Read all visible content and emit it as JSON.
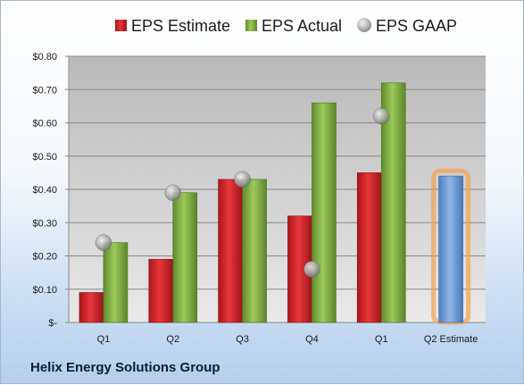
{
  "company_name": "Helix Energy Solutions Group",
  "colors": {
    "estimate": "#e0262b",
    "actual": "#8cb84c",
    "gaap": "#9c9c9c",
    "q2_estimate": "#7aa7dc",
    "highlight": "#f4a24a"
  },
  "chart_data": {
    "type": "bar",
    "categories": [
      "Q1",
      "Q2",
      "Q3",
      "Q4",
      "Q1",
      "Q2 Estimate"
    ],
    "series": [
      {
        "name": "EPS Estimate",
        "values": [
          0.09,
          0.19,
          0.43,
          0.32,
          0.45,
          null
        ]
      },
      {
        "name": "EPS Actual",
        "values": [
          0.24,
          0.39,
          0.43,
          0.66,
          0.72,
          null
        ]
      },
      {
        "name": "EPS GAAP",
        "values": [
          0.24,
          0.39,
          0.43,
          0.16,
          0.62,
          null
        ]
      }
    ],
    "q2_estimate_value": 0.44,
    "ylim": [
      0,
      0.8
    ],
    "yticks": [
      "$-",
      "$0.10",
      "$0.20",
      "$0.30",
      "$0.40",
      "$0.50",
      "$0.60",
      "$0.70",
      "$0.80"
    ],
    "legend": {
      "position": "top",
      "entries": [
        "EPS Estimate",
        "EPS Actual",
        "EPS GAAP"
      ]
    },
    "grid": true
  }
}
